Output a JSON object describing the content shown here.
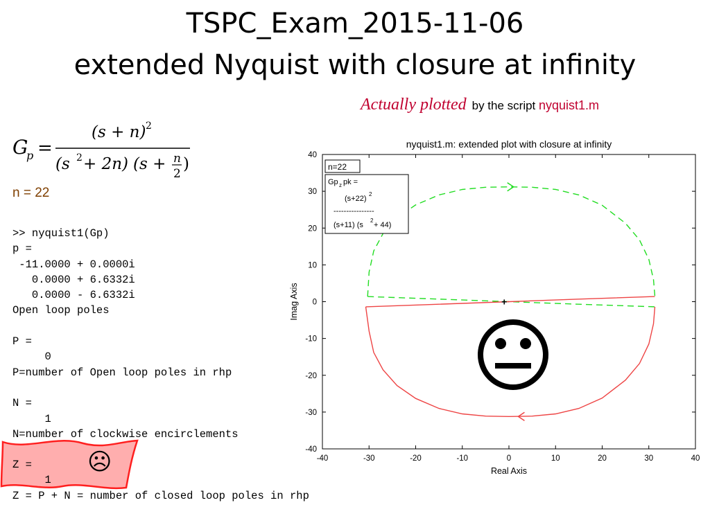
{
  "slide": {
    "title_line1": "TSPC_Exam_2015-11-06",
    "title_line2": "extended Nyquist with closure at infinity",
    "note_italic": "Actually plotted",
    "note_text": "by the script",
    "note_script": "nyquist1.m",
    "formula": {
      "lhs_base": "G",
      "lhs_sub": "p",
      "eq": "=",
      "num": "(s + n)",
      "num_exp": "2",
      "den_a": "(s",
      "den_a_exp": "2",
      "den_a_rest": " + 2n)",
      "den_b_open": "(s +",
      "den_b_num": "n",
      "den_b_den": "2",
      "den_b_close": ")"
    },
    "n_value": "n = 22",
    "console_lines": [
      ">> nyquist1(Gp)",
      "p =",
      " -11.0000 + 0.0000i",
      "   0.0000 + 6.6332i",
      "   0.0000 - 6.6332i",
      "Open loop poles",
      "",
      "P =",
      "     0",
      "P=number of Open loop poles in rhp",
      "",
      "N =",
      "     1",
      "N=number of clockwise encirclements"
    ],
    "z_lines": [
      "Z =",
      "     1",
      "Z = P + N = number of closed loop poles in rhp"
    ],
    "sad_face": "☹",
    "neutral_face": "😐",
    "colors": {
      "accent": "#c0002f",
      "n_color": "#7f3f00",
      "flag": "#ff2a2a",
      "green": "#22dd22",
      "red": "#ee4444"
    }
  },
  "chart_data": {
    "type": "line",
    "title": "nyquist1.m: extended plot with closure at infinity",
    "xlabel": "Real Axis",
    "ylabel": "Imag Axis",
    "xlim": [
      -40,
      40
    ],
    "ylim": [
      -40,
      40
    ],
    "xticks": [
      -40,
      -30,
      -20,
      -10,
      0,
      10,
      20,
      30,
      40
    ],
    "yticks": [
      -40,
      -30,
      -20,
      -10,
      0,
      10,
      20,
      30,
      40
    ],
    "n_label": "n=22",
    "legend_box": {
      "line1": "Gp",
      "line1_sub": "z",
      "line1_rest": "pk =",
      "line2": "(s+22)",
      "line2_exp": "2",
      "line3": "----------------",
      "line4": "(s+11) (s",
      "line4_exp": "2",
      "line4_rest": " + 44)"
    },
    "series": [
      {
        "style": "dashed-green",
        "x": [
          -30.3,
          -30,
          -29,
          -27,
          -24,
          -20,
          -15,
          -10,
          -5,
          0,
          5,
          10,
          15,
          20,
          25,
          28,
          30,
          31,
          31.3
        ],
        "y": [
          1.4,
          8,
          13.8,
          18.5,
          22.8,
          26.3,
          29,
          30.5,
          31.1,
          31.2,
          31.1,
          30.5,
          29,
          26.2,
          21.3,
          16.8,
          11.5,
          6,
          1.5
        ]
      },
      {
        "style": "dashed-green",
        "x": [
          -30.3,
          -15,
          0,
          15,
          31.3
        ],
        "y": [
          1.4,
          0.7,
          0,
          -0.7,
          -1.4
        ]
      },
      {
        "style": "solid-red",
        "x": [
          -30.7,
          -15,
          0,
          15,
          31.3
        ],
        "y": [
          -1.4,
          -0.7,
          0,
          0.7,
          1.4
        ]
      },
      {
        "style": "solid-red",
        "x": [
          31.3,
          31,
          30,
          28,
          25,
          20,
          15,
          10,
          5,
          0,
          -5,
          -10,
          -15,
          -20,
          -24,
          -27,
          -29,
          -30,
          -30.7
        ],
        "y": [
          -1.4,
          -6,
          -11.5,
          -16.8,
          -21.3,
          -26.2,
          -29,
          -30.5,
          -31.1,
          -31.2,
          -31.1,
          -30.5,
          -29,
          -26.3,
          -22.8,
          -18.5,
          -13.8,
          -8,
          -1.4
        ]
      }
    ],
    "arrows": [
      {
        "x": 1,
        "y": 31.2,
        "dir": "right",
        "color": "green"
      },
      {
        "x": 2,
        "y": -31.2,
        "dir": "left",
        "color": "red"
      }
    ],
    "origin_marker": {
      "x": -1,
      "y": 0,
      "symbol": "+"
    },
    "grid": false
  }
}
